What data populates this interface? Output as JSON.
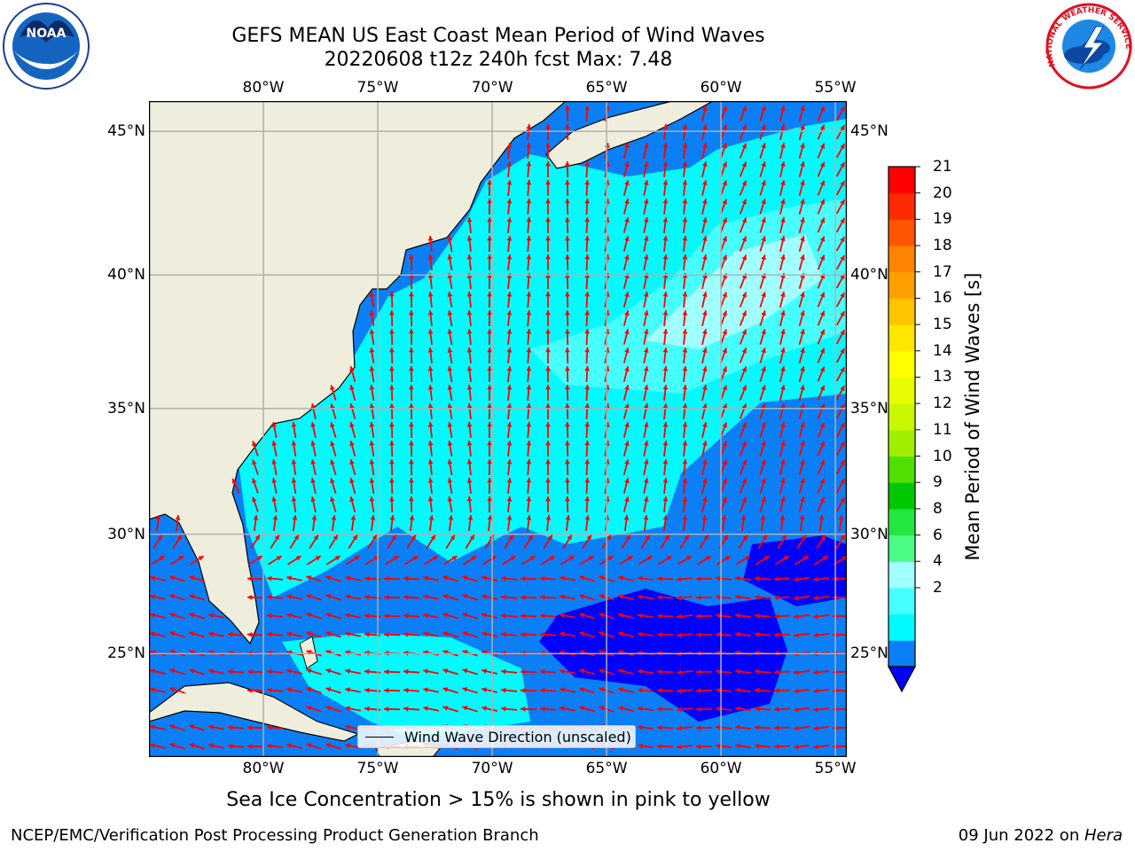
{
  "title": {
    "line1": "GEFS MEAN US East Coast Mean Period of Wind Waves",
    "line2": "20220608 t12z 240h fcst   Max: 7.48"
  },
  "map": {
    "lon_ticks": [
      "80°W",
      "75°W",
      "70°W",
      "65°W",
      "60°W",
      "55°W"
    ],
    "lat_ticks": [
      "45°N",
      "40°N",
      "35°N",
      "30°N",
      "25°N"
    ],
    "lon_range": [
      -85,
      -54.5
    ],
    "lat_range": [
      20.5,
      46
    ],
    "colors": {
      "land": "#efeedc",
      "coast": "#000000",
      "grid": "#b0b0b0",
      "arrow": "#ff0000"
    },
    "legend_label": "Wind Wave Direction (unscaled)"
  },
  "colorbar": {
    "label": "Mean Period of Wind Waves [s]",
    "ticks": [
      "21",
      "20",
      "19",
      "18",
      "17",
      "16",
      "15",
      "14",
      "13",
      "12",
      "11",
      "10",
      "9",
      "8",
      "6",
      "4",
      "2"
    ],
    "colors_bottom_to_top": [
      "#0b7ff6",
      "#00fbff",
      "#46ffff",
      "#a0ffff",
      "#4bfb84",
      "#23e641",
      "#00c800",
      "#4fdf00",
      "#a0ee00",
      "#c9f700",
      "#e8fc00",
      "#ffff00",
      "#ffe600",
      "#ffc400",
      "#ffa000",
      "#ff8200",
      "#ff5500",
      "#ff2a00",
      "#ff0000"
    ],
    "extend_color": "#0000ff"
  },
  "caption": "Sea Ice Concentration > 15% is shown in pink to yellow",
  "footer": {
    "left": "NCEP/EMC/Verification Post Processing Product Generation Branch",
    "right_date": "09 Jun 2022 on ",
    "right_host": "Hera"
  },
  "logos": {
    "noaa_text": "NOAA",
    "nws_text": "NATIONAL WEATHER SERVICE"
  }
}
